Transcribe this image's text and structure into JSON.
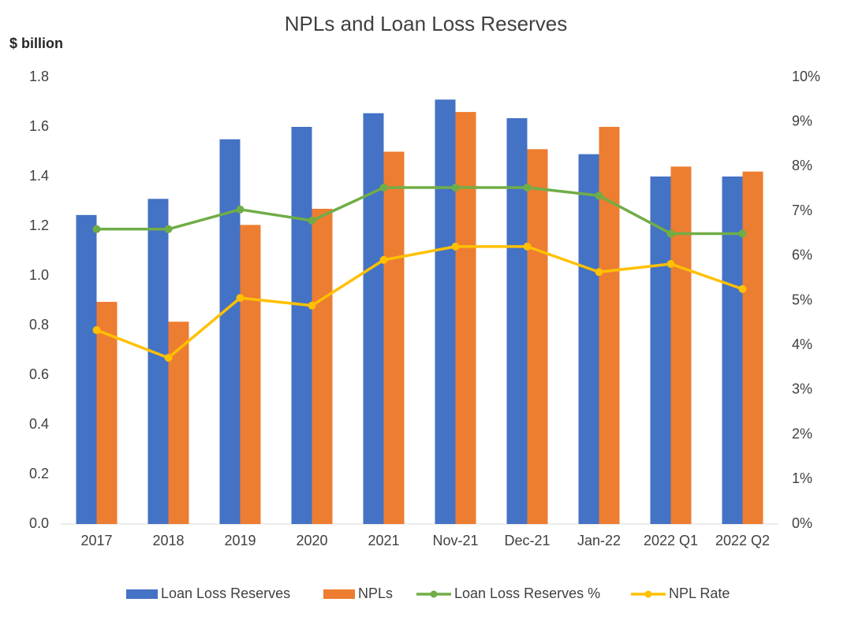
{
  "chart_data": {
    "type": "bar-line",
    "title": "NPLs and Loan Loss Reserves",
    "y_label": "$ billion",
    "categories": [
      "2017",
      "2018",
      "2019",
      "2020",
      "2021",
      "Nov-21",
      "Dec-21",
      "Jan-22",
      "2022 Q1",
      "2022 Q2"
    ],
    "series": [
      {
        "name": "Loan Loss Reserves",
        "color": "#4472c4",
        "kind": "bar",
        "values": [
          1.245,
          1.31,
          1.55,
          1.6,
          1.655,
          1.71,
          1.635,
          1.49,
          1.4,
          1.4
        ]
      },
      {
        "name": "NPLs",
        "color": "#ed7d31",
        "kind": "bar",
        "values": [
          0.895,
          0.815,
          1.205,
          1.27,
          1.5,
          1.66,
          1.51,
          1.6,
          1.44,
          1.42
        ]
      },
      {
        "name": "Loan Loss Reserves %",
        "color": "#70ad47",
        "kind": "line",
        "axis": "y2",
        "values": [
          6.6,
          6.6,
          7.04,
          6.79,
          7.53,
          7.53,
          7.53,
          7.35,
          6.5,
          6.5
        ]
      },
      {
        "name": "NPL Rate",
        "color": "#ffc000",
        "kind": "line",
        "axis": "y2",
        "values": [
          4.34,
          3.72,
          5.06,
          4.89,
          5.91,
          6.21,
          6.21,
          5.64,
          5.82,
          5.26
        ]
      }
    ],
    "ylim": [
      0,
      1.8
    ],
    "yticks": [
      {
        "value": 0,
        "label": "0.0"
      },
      {
        "value": 0.2,
        "label": "0.2"
      },
      {
        "value": 0.4,
        "label": "0.4"
      },
      {
        "value": 0.6,
        "label": "0.6"
      },
      {
        "value": 0.8,
        "label": "0.8"
      },
      {
        "value": 1,
        "label": "1.0"
      },
      {
        "value": 1.2,
        "label": "1.2"
      },
      {
        "value": 1.4,
        "label": "1.4"
      },
      {
        "value": 1.6,
        "label": "1.6"
      },
      {
        "value": 1.8,
        "label": "1.8"
      }
    ],
    "y2lim": [
      0,
      10
    ],
    "y2ticks": [
      {
        "value": 0,
        "label": "0%"
      },
      {
        "value": 1,
        "label": "1%"
      },
      {
        "value": 2,
        "label": "2%"
      },
      {
        "value": 3,
        "label": "3%"
      },
      {
        "value": 4,
        "label": "4%"
      },
      {
        "value": 5,
        "label": "5%"
      },
      {
        "value": 6,
        "label": "6%"
      },
      {
        "value": 7,
        "label": "7%"
      },
      {
        "value": 8,
        "label": "8%"
      },
      {
        "value": 9,
        "label": "9%"
      },
      {
        "value": 10,
        "label": "10%"
      }
    ],
    "grid": false,
    "legend": "bottom"
  }
}
